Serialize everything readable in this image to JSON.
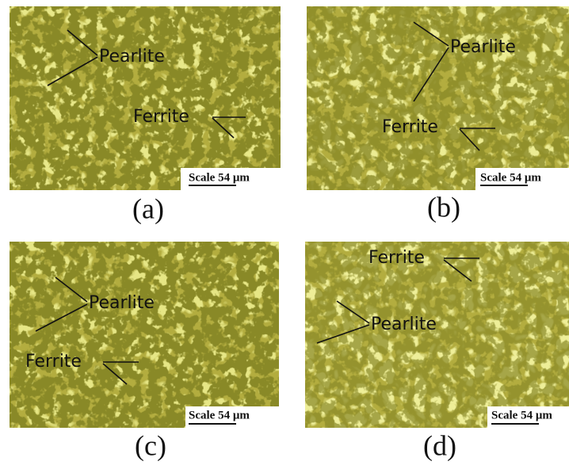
{
  "panels": [
    {
      "caption": "(a)",
      "pearlite": "Pearlite",
      "ferrite": "Ferrite",
      "scale": "Scale 54 μm"
    },
    {
      "caption": "(b)",
      "pearlite": "Pearlite",
      "ferrite": "Ferrite",
      "scale": "Scale 54 μm"
    },
    {
      "caption": "(c)",
      "pearlite": "Pearlite",
      "ferrite": "Ferrite",
      "scale": "Scale 54 μm"
    },
    {
      "caption": "(d)",
      "pearlite": "Pearlite",
      "ferrite": "Ferrite",
      "scale": "Scale 54 μm"
    }
  ]
}
